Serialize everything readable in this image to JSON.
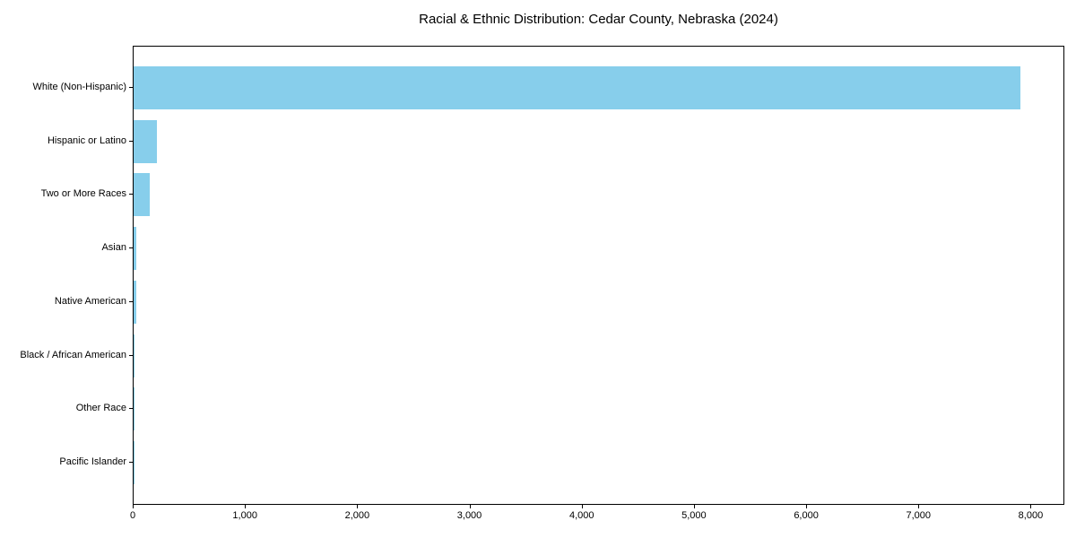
{
  "title": "Racial & Ethnic Distribution: Cedar County, Nebraska (2024)",
  "colors": {
    "bar": "#87CEEB",
    "frame": "#000000",
    "text": "#000000",
    "background": "#FFFFFF"
  },
  "chart_data": {
    "type": "bar",
    "orientation": "horizontal",
    "title": "Racial & Ethnic Distribution: Cedar County, Nebraska (2024)",
    "xlabel": "",
    "ylabel": "",
    "categories": [
      "White (Non-Hispanic)",
      "Hispanic or Latino",
      "Two or More Races",
      "Asian",
      "Native American",
      "Black / African American",
      "Other Race",
      "Pacific Islander"
    ],
    "values": [
      7900,
      210,
      145,
      25,
      20,
      8,
      5,
      1
    ],
    "bar_color": "#87CEEB",
    "bar_color_name": "skyblue",
    "xlim": [
      0,
      8300
    ],
    "xticks": [
      0,
      1000,
      2000,
      3000,
      4000,
      5000,
      6000,
      7000,
      8000
    ],
    "xtick_labels": [
      "0",
      "1,000",
      "2,000",
      "3,000",
      "4,000",
      "5,000",
      "6,000",
      "7,000",
      "8,000"
    ],
    "grid": false,
    "legend": false
  }
}
